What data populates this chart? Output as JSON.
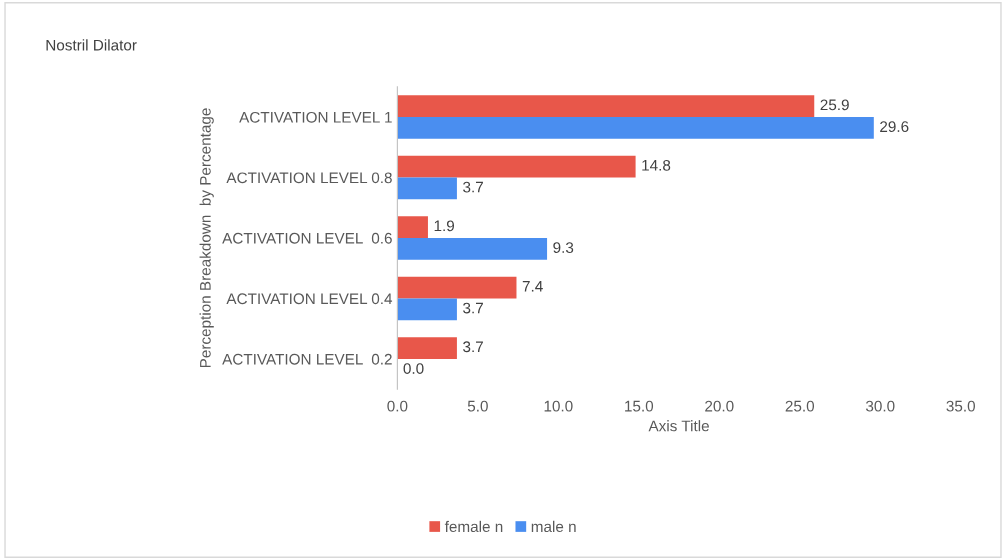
{
  "chart_data": {
    "type": "bar",
    "orientation": "horizontal",
    "title": "Nostril Dilator",
    "categories": [
      "ACTIVATION LEVEL 1",
      "ACTIVATION LEVEL 0.8",
      "ACTIVATION LEVEL  0.6",
      "ACTIVATION LEVEL 0.4",
      "ACTIVATION LEVEL  0.2"
    ],
    "series": [
      {
        "name": "female n",
        "color": "#e8574a",
        "values": [
          25.9,
          14.8,
          1.9,
          7.4,
          3.7
        ],
        "value_labels": [
          "25.9",
          "14.8",
          "1.9",
          "7.4",
          "3.7"
        ]
      },
      {
        "name": "male n",
        "color": "#4a8ef0",
        "values": [
          29.6,
          3.7,
          9.3,
          3.7,
          0.0
        ],
        "value_labels": [
          "29.6",
          "3.7",
          "9.3",
          "3.7",
          "0.0"
        ]
      }
    ],
    "xlabel": "Axis Title",
    "ylabel": "Perception Breakdown  by Percentage",
    "xlim": [
      0,
      35
    ],
    "xticks": [
      {
        "value": 0,
        "label": "0.0"
      },
      {
        "value": 5,
        "label": "5.0"
      },
      {
        "value": 10,
        "label": "10.0"
      },
      {
        "value": 15,
        "label": "15.0"
      },
      {
        "value": 20,
        "label": "20.0"
      },
      {
        "value": 25,
        "label": "25.0"
      },
      {
        "value": 30,
        "label": "30.0"
      },
      {
        "value": 35,
        "label": "35.0"
      }
    ],
    "grid": false,
    "legend": "bottom"
  }
}
